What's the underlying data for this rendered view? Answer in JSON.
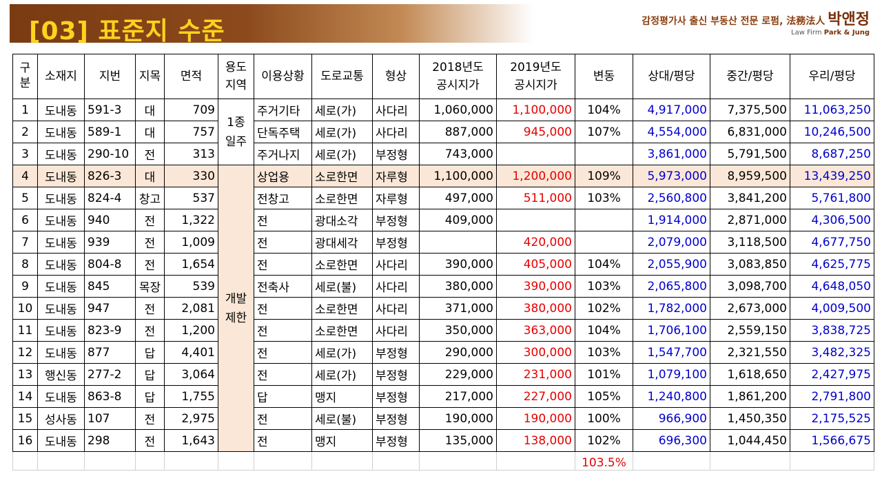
{
  "header": {
    "title": "[03] 표준지 수준",
    "brand_line": "감정평가사 출신 부동산 전문 로펌, 法務法人",
    "brand_name": "박앤정",
    "brand_sub_prefix": "Law Firm",
    "brand_sub_name": "Park & Jung"
  },
  "table": {
    "headers": {
      "no": "구분",
      "location": "소재지",
      "lot": "지번",
      "category": "지목",
      "area": "면적",
      "zone": "용도지역",
      "use": "이용상황",
      "road": "도로교통",
      "shape": "형상",
      "price2018": "2018년도 공시지가",
      "price2019": "2019년도 공시지가",
      "change": "변동",
      "sangdae": "상대/평당",
      "junggan": "중간/평당",
      "uri": "우리/평당"
    },
    "zones": {
      "z1": "1종일주",
      "z2": "개발제한"
    },
    "rows": [
      {
        "no": "1",
        "location": "도내동",
        "lot": "591-3",
        "category": "대",
        "area": "709",
        "use": "주거기타",
        "road": "세로(가)",
        "shape": "사다리",
        "p2018": "1,060,000",
        "p2019": "1,100,000",
        "change": "104%",
        "sangdae": "4,917,000",
        "junggan": "7,375,500",
        "uri": "11,063,250"
      },
      {
        "no": "2",
        "location": "도내동",
        "lot": "589-1",
        "category": "대",
        "area": "757",
        "use": "단독주택",
        "road": "세로(가)",
        "shape": "사다리",
        "p2018": "887,000",
        "p2019": "945,000",
        "change": "107%",
        "sangdae": "4,554,000",
        "junggan": "6,831,000",
        "uri": "10,246,500"
      },
      {
        "no": "3",
        "location": "도내동",
        "lot": "290-10",
        "category": "전",
        "area": "313",
        "use": "주거나지",
        "road": "세로(가)",
        "shape": "부정형",
        "p2018": "743,000",
        "p2019": "",
        "change": "",
        "sangdae": "3,861,000",
        "junggan": "5,791,500",
        "uri": "8,687,250"
      },
      {
        "no": "4",
        "location": "도내동",
        "lot": "826-3",
        "category": "대",
        "area": "330",
        "use": "상업용",
        "road": "소로한면",
        "shape": "자루형",
        "p2018": "1,100,000",
        "p2019": "1,200,000",
        "change": "109%",
        "sangdae": "5,973,000",
        "junggan": "8,959,500",
        "uri": "13,439,250"
      },
      {
        "no": "5",
        "location": "도내동",
        "lot": "824-4",
        "category": "창고",
        "area": "537",
        "use": "전창고",
        "road": "소로한면",
        "shape": "자루형",
        "p2018": "497,000",
        "p2019": "511,000",
        "change": "103%",
        "sangdae": "2,560,800",
        "junggan": "3,841,200",
        "uri": "5,761,800"
      },
      {
        "no": "6",
        "location": "도내동",
        "lot": "940",
        "category": "전",
        "area": "1,322",
        "use": "전",
        "road": "광대소각",
        "shape": "부정형",
        "p2018": "409,000",
        "p2019": "",
        "change": "",
        "sangdae": "1,914,000",
        "junggan": "2,871,000",
        "uri": "4,306,500"
      },
      {
        "no": "7",
        "location": "도내동",
        "lot": "939",
        "category": "전",
        "area": "1,009",
        "use": "전",
        "road": "광대세각",
        "shape": "부정형",
        "p2018": "",
        "p2019": "420,000",
        "change": "",
        "sangdae": "2,079,000",
        "junggan": "3,118,500",
        "uri": "4,677,750"
      },
      {
        "no": "8",
        "location": "도내동",
        "lot": "804-8",
        "category": "전",
        "area": "1,654",
        "use": "전",
        "road": "소로한면",
        "shape": "사다리",
        "p2018": "390,000",
        "p2019": "405,000",
        "change": "104%",
        "sangdae": "2,055,900",
        "junggan": "3,083,850",
        "uri": "4,625,775"
      },
      {
        "no": "9",
        "location": "도내동",
        "lot": "845",
        "category": "목장",
        "area": "539",
        "use": "전축사",
        "road": "세로(불)",
        "shape": "사다리",
        "p2018": "380,000",
        "p2019": "390,000",
        "change": "103%",
        "sangdae": "2,065,800",
        "junggan": "3,098,700",
        "uri": "4,648,050"
      },
      {
        "no": "10",
        "location": "도내동",
        "lot": "947",
        "category": "전",
        "area": "2,081",
        "use": "전",
        "road": "소로한면",
        "shape": "사다리",
        "p2018": "371,000",
        "p2019": "380,000",
        "change": "102%",
        "sangdae": "1,782,000",
        "junggan": "2,673,000",
        "uri": "4,009,500"
      },
      {
        "no": "11",
        "location": "도내동",
        "lot": "823-9",
        "category": "전",
        "area": "1,200",
        "use": "전",
        "road": "소로한면",
        "shape": "사다리",
        "p2018": "350,000",
        "p2019": "363,000",
        "change": "104%",
        "sangdae": "1,706,100",
        "junggan": "2,559,150",
        "uri": "3,838,725"
      },
      {
        "no": "12",
        "location": "도내동",
        "lot": "877",
        "category": "답",
        "area": "4,401",
        "use": "전",
        "road": "세로(가)",
        "shape": "부정형",
        "p2018": "290,000",
        "p2019": "300,000",
        "change": "103%",
        "sangdae": "1,547,700",
        "junggan": "2,321,550",
        "uri": "3,482,325"
      },
      {
        "no": "13",
        "location": "행신동",
        "lot": "277-2",
        "category": "답",
        "area": "3,064",
        "use": "전",
        "road": "세로(가)",
        "shape": "부정형",
        "p2018": "229,000",
        "p2019": "231,000",
        "change": "101%",
        "sangdae": "1,079,100",
        "junggan": "1,618,650",
        "uri": "2,427,975"
      },
      {
        "no": "14",
        "location": "도내동",
        "lot": "863-8",
        "category": "답",
        "area": "1,755",
        "use": "답",
        "road": "맹지",
        "shape": "부정형",
        "p2018": "217,000",
        "p2019": "227,000",
        "change": "105%",
        "sangdae": "1,240,800",
        "junggan": "1,861,200",
        "uri": "2,791,800"
      },
      {
        "no": "15",
        "location": "성사동",
        "lot": "107",
        "category": "전",
        "area": "2,975",
        "use": "전",
        "road": "세로(불)",
        "shape": "부정형",
        "p2018": "190,000",
        "p2019": "190,000",
        "change": "100%",
        "sangdae": "966,900",
        "junggan": "1,450,350",
        "uri": "2,175,525"
      },
      {
        "no": "16",
        "location": "도내동",
        "lot": "298",
        "category": "전",
        "area": "1,643",
        "use": "전",
        "road": "맹지",
        "shape": "부정형",
        "p2018": "135,000",
        "p2019": "138,000",
        "change": "102%",
        "sangdae": "696,300",
        "junggan": "1,044,450",
        "uri": "1,566,675"
      }
    ],
    "average_change": "103.5%"
  },
  "colors": {
    "title_text": "#ffd21e",
    "header_bg": "#7a3b12",
    "price2019_text": "#e60000",
    "per_pyeong_text": "#0000cc",
    "highlight_row": "#fbe7d7"
  }
}
